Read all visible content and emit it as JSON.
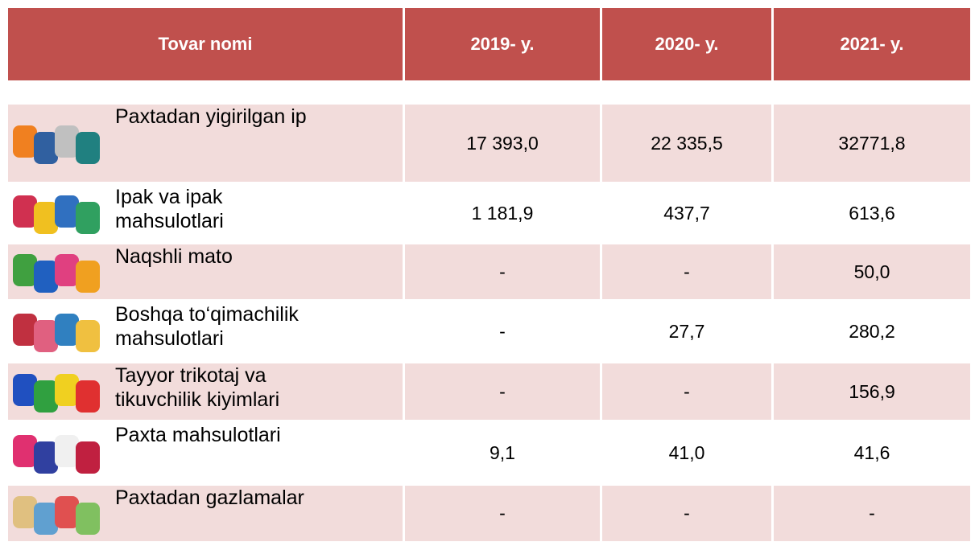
{
  "table": {
    "header": [
      "Tovar nomi",
      "2019- y.",
      "2020- y.",
      "2021- y."
    ],
    "rows": [
      {
        "name": [
          "Paxtadan yigirilgan ip"
        ],
        "values": [
          "17 393,0",
          "22 335,5",
          "32771,8"
        ]
      },
      {
        "name": [
          "Ipak va ipak",
          "mahsulotlari"
        ],
        "values": [
          "1 181,9",
          "437,7",
          "613,6"
        ]
      },
      {
        "name": [
          "Naqshli mato"
        ],
        "values": [
          "-",
          "-",
          "50,0"
        ]
      },
      {
        "name": [
          "Boshqa to‘qimachilik",
          "mahsulotlari"
        ],
        "values": [
          "-",
          "27,7",
          "280,2"
        ]
      },
      {
        "name": [
          "Tayyor trikotaj va",
          "tikuvchilik  kiyimlari"
        ],
        "values": [
          "-",
          "-",
          "156,9"
        ]
      },
      {
        "name": [
          "Paxta mahsulotlari"
        ],
        "values": [
          "9,1",
          "41,0",
          "41,6"
        ]
      },
      {
        "name": [
          "Paxtadan gazlamalar"
        ],
        "values": [
          "-",
          "-",
          "-"
        ]
      }
    ]
  }
}
